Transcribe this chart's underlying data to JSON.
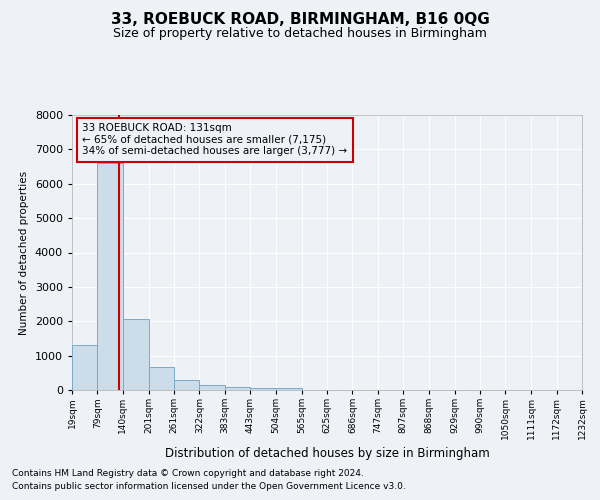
{
  "title": "33, ROEBUCK ROAD, BIRMINGHAM, B16 0QG",
  "subtitle": "Size of property relative to detached houses in Birmingham",
  "xlabel": "Distribution of detached houses by size in Birmingham",
  "ylabel": "Number of detached properties",
  "footer_line1": "Contains HM Land Registry data © Crown copyright and database right 2024.",
  "footer_line2": "Contains public sector information licensed under the Open Government Licence v3.0.",
  "bin_edges": [
    19,
    79,
    140,
    201,
    261,
    322,
    383,
    443,
    504,
    565,
    625,
    686,
    747,
    807,
    868,
    929,
    990,
    1050,
    1111,
    1172,
    1232
  ],
  "bar_heights": [
    1300,
    6600,
    2075,
    680,
    290,
    145,
    100,
    55,
    55,
    0,
    0,
    0,
    0,
    0,
    0,
    0,
    0,
    0,
    0,
    0
  ],
  "bar_color": "#ccdce8",
  "bar_edge_color": "#7aaac8",
  "red_line_x": 131,
  "ylim": [
    0,
    8000
  ],
  "annotation_line1": "33 ROEBUCK ROAD: 131sqm",
  "annotation_line2": "← 65% of detached houses are smaller (7,175)",
  "annotation_line3": "34% of semi-detached houses are larger (3,777) →",
  "annotation_box_color": "#cc0000",
  "bg_color": "#eef2f7",
  "grid_color": "#ffffff",
  "title_fontsize": 11,
  "subtitle_fontsize": 9,
  "footer_fontsize": 6.5
}
